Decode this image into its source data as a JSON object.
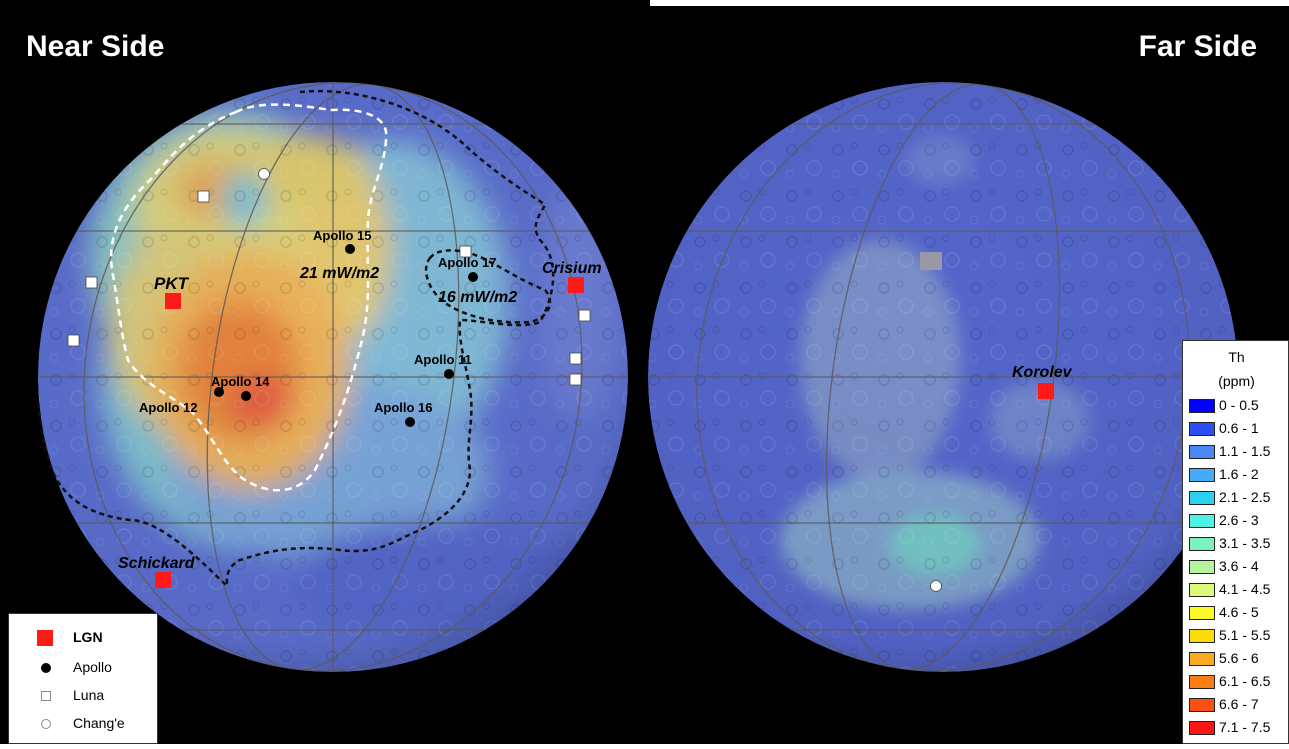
{
  "titles": {
    "near": "Near Side",
    "far": "Far Side"
  },
  "near_labels": {
    "pkt": "PKT",
    "crisium": "Crisium",
    "schickard": "Schickard",
    "flux21": "21 mW/m2",
    "flux16": "16 mW/m2",
    "apollo15": "Apollo 15",
    "apollo17": "Apollo 17",
    "apollo11": "Apollo 11",
    "apollo14": "Apollo 14",
    "apollo12": "Apollo 12",
    "apollo16": "Apollo 16"
  },
  "far_labels": {
    "korolev": "Korolev"
  },
  "site_legend": [
    {
      "label": "LGN",
      "symbol": "red-square"
    },
    {
      "label": "Apollo",
      "symbol": "black-dot"
    },
    {
      "label": "Luna",
      "symbol": "white-square"
    },
    {
      "label": "Chang'e",
      "symbol": "white-circle"
    }
  ],
  "th_legend": {
    "title": "Th",
    "unit": "(ppm)",
    "bins": [
      {
        "label": "0 - 0.5",
        "color": "#0000ff"
      },
      {
        "label": "0.6 - 1",
        "color": "#2a4ff5"
      },
      {
        "label": "1.1 - 1.5",
        "color": "#4a86f5"
      },
      {
        "label": "1.6 - 2",
        "color": "#46aaf5"
      },
      {
        "label": "2.1 - 2.5",
        "color": "#2ad2f0"
      },
      {
        "label": "2.6 - 3",
        "color": "#4ff0e6"
      },
      {
        "label": "3.1 - 3.5",
        "color": "#7df0bf"
      },
      {
        "label": "3.6 - 4",
        "color": "#b4f59a"
      },
      {
        "label": "4.1 - 4.5",
        "color": "#dcfa78"
      },
      {
        "label": "4.6 - 5",
        "color": "#fafa28"
      },
      {
        "label": "5.1 - 5.5",
        "color": "#fadc0a"
      },
      {
        "label": "5.6 - 6",
        "color": "#faaa1e"
      },
      {
        "label": "6.1 - 6.5",
        "color": "#fa7d14"
      },
      {
        "label": "6.6 - 7",
        "color": "#fa5014"
      },
      {
        "label": "7.1 - 7.5",
        "color": "#fa1414"
      }
    ]
  }
}
